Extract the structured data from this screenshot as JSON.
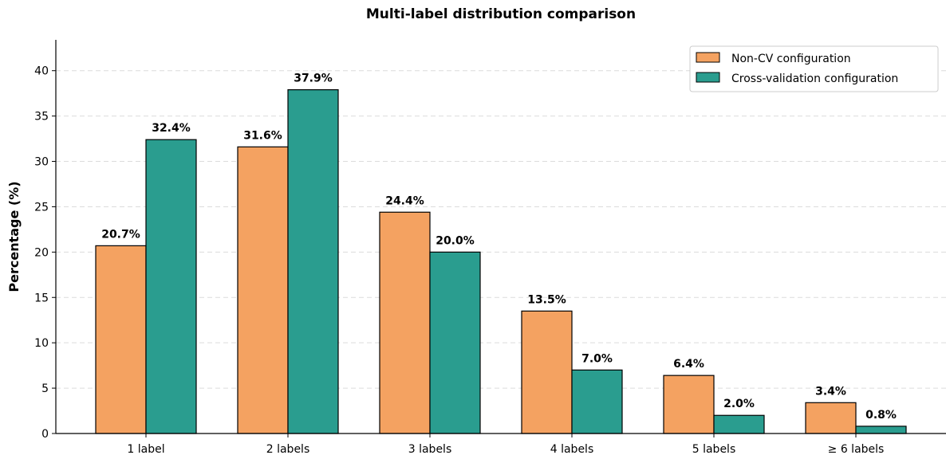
{
  "chart_data": {
    "type": "bar",
    "title": "Multi-label distribution comparison",
    "xlabel": "",
    "ylabel": "Percentage (%)",
    "categories": [
      "1 label",
      "2 labels",
      "3 labels",
      "4 labels",
      "5 labels",
      "≥ 6 labels"
    ],
    "series": [
      {
        "name": "Non-CV configuration",
        "color": "#f4a261",
        "values": [
          20.7,
          31.6,
          24.4,
          13.5,
          6.4,
          3.4
        ],
        "labels": [
          "20.7%",
          "31.6%",
          "24.4%",
          "13.5%",
          "6.4%",
          "3.4%"
        ]
      },
      {
        "name": "Cross-validation configuration",
        "color": "#2a9d8f",
        "values": [
          32.4,
          37.9,
          20.0,
          7.0,
          2.0,
          0.8
        ],
        "labels": [
          "32.4%",
          "37.9%",
          "20.0%",
          "7.0%",
          "2.0%",
          "0.8%"
        ]
      }
    ],
    "ylim": [
      0,
      43.4
    ],
    "yticks": [
      0,
      5,
      10,
      15,
      20,
      25,
      30,
      35,
      40
    ],
    "grid": true,
    "legend_position": "top-right"
  }
}
